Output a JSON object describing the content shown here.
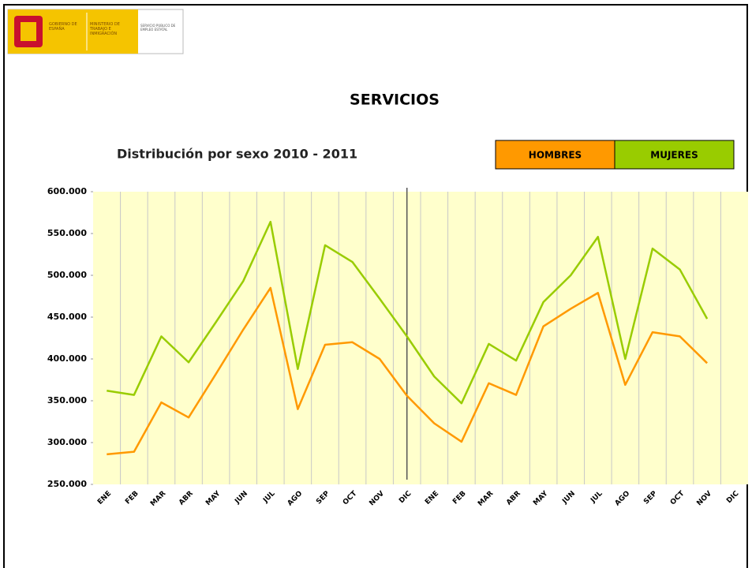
{
  "header": {
    "logo_gobierno": "GOBIERNO DE ESPAÑA",
    "logo_ministerio": "MINISTERIO DE TRABAJO E INMIGRACIÓN",
    "logo_servicio": "SERVICIO PÚBLICO DE EMPLEO ESTATAL"
  },
  "chart_data": {
    "type": "line",
    "title": "SERVICIOS",
    "subtitle": "Distribución por sexo 2010 - 2011",
    "categories": [
      "ENE",
      "FEB",
      "MAR",
      "ABR",
      "MAY",
      "JUN",
      "JUL",
      "AGO",
      "SEP",
      "OCT",
      "NOV",
      "DIC",
      "ENE",
      "FEB",
      "MAR",
      "ABR",
      "MAY",
      "JUN",
      "JUL",
      "AGO",
      "SEP",
      "OCT",
      "NOV",
      "DIC"
    ],
    "series": [
      {
        "name": "HOMBRES",
        "color": "#ff9900",
        "values": [
          286000,
          289000,
          348000,
          330000,
          382000,
          435000,
          485000,
          340000,
          417000,
          420000,
          400000,
          356000,
          323000,
          301000,
          371000,
          357000,
          439000,
          460000,
          479000,
          369000,
          432000,
          427000,
          395000,
          null
        ]
      },
      {
        "name": "MUJERES",
        "color": "#99cc00",
        "values": [
          362000,
          357000,
          427000,
          396000,
          444000,
          493000,
          564000,
          388000,
          536000,
          516000,
          472000,
          427000,
          379000,
          347000,
          418000,
          398000,
          468000,
          500000,
          546000,
          400000,
          532000,
          507000,
          448000,
          null
        ]
      }
    ],
    "ylim": [
      250000,
      600000
    ],
    "yticks": [
      {
        "value": 250000,
        "label": "250.000"
      },
      {
        "value": 300000,
        "label": "300.000"
      },
      {
        "value": 350000,
        "label": "350.000"
      },
      {
        "value": 400000,
        "label": "400.000"
      },
      {
        "value": 450000,
        "label": "450.000"
      },
      {
        "value": 500000,
        "label": "500.000"
      },
      {
        "value": 550000,
        "label": "550.000"
      },
      {
        "value": 600000,
        "label": "600.000"
      }
    ],
    "grid": false,
    "legend": "top-right"
  }
}
